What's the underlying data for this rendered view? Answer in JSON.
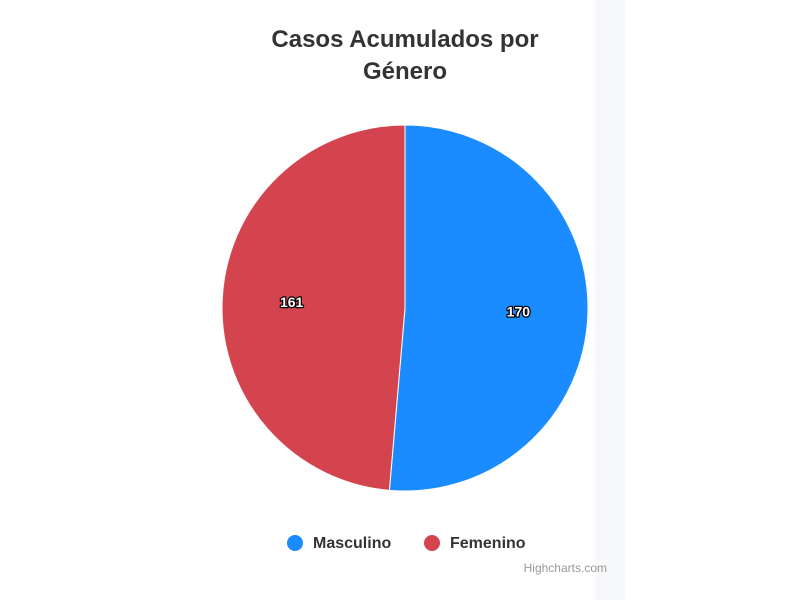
{
  "chart_data": {
    "type": "pie",
    "title": "Casos Acumulados por Género",
    "categories": [
      "Masculino",
      "Femenino"
    ],
    "values": [
      170,
      161
    ],
    "colors": [
      "#1a8cff",
      "#d4444f"
    ],
    "legend": "bottom",
    "credits": "Highcharts.com"
  }
}
